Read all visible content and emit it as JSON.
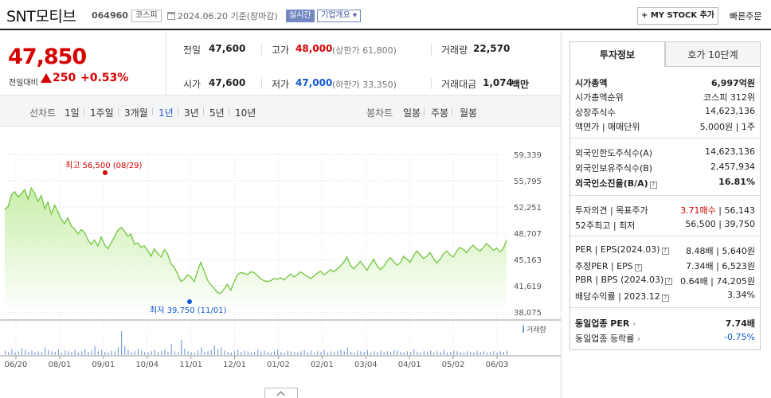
{
  "header": {
    "company_name": "SNT모티브",
    "company_code": "064960",
    "market": "코스피",
    "date": "2024.06.20",
    "date_basis": "기준(장마감)",
    "realtime_badge": "실시간",
    "company_info_button": "기업개요",
    "mystock_button": "MY STOCK 추가",
    "quick_order_button": "빠른주문"
  },
  "price": {
    "current": "47,850",
    "change_label": "전일대비",
    "change_amount": "250",
    "change_rate": "+0.53%",
    "prev_close_label": "전일",
    "prev_close": "47,600",
    "open_label": "시가",
    "open": "47,600",
    "high_label": "고가",
    "high": "48,000",
    "upper_limit": "(상한가 61,800)",
    "low_label": "저가",
    "low": "47,000",
    "lower_limit": "(하한가 33,350)",
    "volume_label": "거래량",
    "volume": "22,570",
    "amount_label": "거래대금",
    "amount": "1,074",
    "amount_unit": "백만"
  },
  "period_tabs": {
    "line_chart_label": "선차트",
    "items": [
      "1일",
      "1주일",
      "3개월",
      "1년",
      "3년",
      "5년",
      "10년"
    ],
    "active": "1년",
    "candle_chart_label": "봉차트",
    "candle_items": [
      "일봉",
      "주봉",
      "월봉"
    ]
  },
  "chart_data": {
    "type": "area",
    "x_tick_labels": [
      "06/20",
      "08/01",
      "09/01",
      "10/04",
      "11/01",
      "12/01",
      "01/02",
      "02/01",
      "03/04",
      "04/01",
      "05/02",
      "06/03"
    ],
    "y_tick_labels": [
      "59,339",
      "55,795",
      "52,251",
      "48,707",
      "45,163",
      "41,619",
      "38,075"
    ],
    "ylim": [
      38075,
      59339
    ],
    "grid": true,
    "high_annotation": "최고 56,500 (08/29)",
    "low_annotation": "최저 39,750 (11/01)",
    "volume_legend": "거래량",
    "colors": {
      "line": "#7bc84a",
      "area_top": "#c9eeaa",
      "area_bottom": "#ffffff",
      "volume": "#7aa0d9",
      "high": "#d60000",
      "low": "#1158cf"
    },
    "series": [
      {
        "values": [
          51900,
          52300,
          53900,
          54300,
          53600,
          54000,
          54600,
          53300,
          54800,
          54100,
          53000,
          53800,
          52000,
          52900,
          51300,
          52500,
          51600,
          50600,
          50000,
          50800,
          49700,
          49300,
          48600,
          49200,
          48800,
          47800,
          47200,
          47800,
          47000,
          48200,
          47200,
          46600,
          47400,
          48200,
          49100,
          49500,
          49000,
          48300,
          48600,
          47200,
          47400,
          46800,
          47000,
          46400,
          45600,
          46600,
          46000,
          45500,
          46500,
          45900,
          44600,
          44100,
          43200,
          42200,
          42500,
          43100,
          42800,
          42200,
          43600,
          44800,
          43600,
          42400,
          41700,
          41300,
          40700,
          40600,
          41200,
          41800,
          41000,
          42100,
          43100,
          43400,
          43300,
          43100,
          43500,
          43400,
          43000,
          42600,
          42300,
          42200,
          42300,
          42600,
          42500,
          42700,
          42400,
          42800,
          43200,
          42800,
          43100,
          43500,
          43200,
          42900,
          42600,
          42900,
          43300,
          43600,
          43100,
          43400,
          43800,
          43500,
          43900,
          44300,
          44800,
          45500,
          44400,
          43900,
          44400,
          44900,
          44300,
          43700,
          44500,
          45200,
          44300,
          43800,
          44200,
          44900,
          45400,
          44900,
          44400,
          44700,
          45600,
          45200,
          44800,
          45700,
          46300,
          45800,
          45300,
          45600,
          46100,
          45300,
          44700,
          45200,
          45900,
          46300,
          45800,
          45500,
          46300,
          46800,
          46500,
          46100,
          46700,
          47100,
          46600,
          46300,
          46800,
          47300,
          46900,
          46400,
          46700,
          46200,
          46600,
          47800
        ]
      }
    ],
    "volume_values": [
      7,
      5,
      9,
      4,
      6,
      10,
      8,
      5,
      7,
      4,
      6,
      5,
      12,
      8,
      6,
      5,
      9,
      4,
      7,
      6,
      5,
      8,
      4,
      6,
      9,
      5,
      7,
      14,
      6,
      8,
      5,
      4,
      7,
      6,
      12,
      38,
      14,
      8,
      5,
      6,
      10,
      7,
      5,
      4,
      6,
      8,
      5,
      7,
      9,
      4,
      18,
      6,
      5,
      24,
      10,
      6,
      5,
      4,
      7,
      12,
      5,
      6,
      8,
      15,
      9,
      12,
      7,
      5,
      4,
      6,
      8,
      5,
      7,
      6,
      4,
      5,
      8,
      6,
      7,
      5,
      4,
      6,
      9,
      5,
      4,
      7,
      6,
      5,
      4,
      6,
      8,
      5,
      7,
      4,
      6,
      5,
      8,
      4,
      6,
      5,
      7,
      9,
      6,
      12,
      5,
      4,
      7,
      6,
      5,
      8,
      4,
      6,
      5,
      7,
      4,
      6,
      5,
      8,
      7,
      5,
      4,
      6,
      5,
      9,
      5,
      4,
      6,
      5,
      7,
      4,
      6,
      5,
      8,
      4,
      5,
      7,
      6,
      5,
      4,
      6,
      5,
      4,
      7,
      5,
      6,
      4,
      5,
      6,
      4,
      6,
      5,
      7
    ]
  },
  "right_panel": {
    "tabs": [
      "투자정보",
      "호가 10단계"
    ],
    "market_cap_label": "시가총액",
    "market_cap": "6,997억원",
    "market_cap_rank_label": "시가총액순위",
    "market_cap_rank": "코스피 312위",
    "listed_shares_label": "상장주식수",
    "listed_shares": "14,623,136",
    "par_value_label": "액면가 | 매매단위",
    "par_value": "5,000원 | 1주",
    "foreign_limit_label": "외국인한도주식수(A)",
    "foreign_limit": "14,623,136",
    "foreign_hold_label": "외국인보유주식수(B)",
    "foreign_hold": "2,457,934",
    "foreign_ratio_label": "외국인소진율(B/A)",
    "foreign_ratio": "16.81%",
    "opinion_label": "투자의견 | 목표주가",
    "opinion": "3.71매수",
    "target_price": "56,143",
    "week52_label": "52주최고 | 최저",
    "week52": "56,500 | 39,750",
    "per_label": "PER | EPS(2024.03)",
    "per": "8.48배 | 5,640원",
    "est_per_label": "추정PER | EPS",
    "est_per": "7.34배 | 6,523원",
    "pbr_label": "PBR | BPS (2024.03)",
    "pbr": "0.64배 | 74,205원",
    "dividend_label": "배당수익률 | 2023.12",
    "dividend": "3.34%",
    "industry_per_label": "동일업종 PER",
    "industry_per": "7.74배",
    "industry_rate_label": "동일업종 등락률",
    "industry_rate": "-0.75%"
  }
}
